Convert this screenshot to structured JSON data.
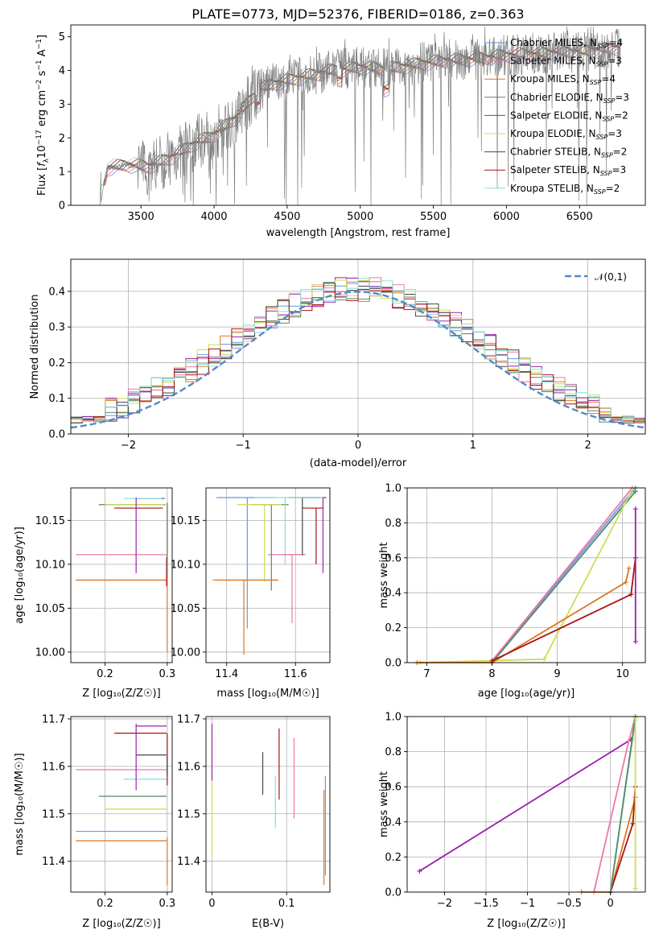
{
  "chart_data": [
    {
      "type": "line",
      "title": "PLATE=0773, MJD=52376, FIBERID=0186, z=0.363",
      "xlabel": "wavelength [Angstrom, rest frame]",
      "ylabel": "Flux [f_λ 10^{-17} erg cm^{-2} s^{-1} A^{-1}]",
      "xlim": [
        3020,
        6950
      ],
      "ylim": [
        0,
        5.35
      ],
      "xticks": [
        3500,
        4000,
        4500,
        5000,
        5500,
        6000,
        6500
      ],
      "yticks": [
        0,
        1,
        2,
        3,
        4,
        5
      ],
      "legend_position": "right",
      "data_series": {
        "name": "",
        "color": "#808080",
        "start": 3220,
        "end": 6780,
        "note_x": [
          3220,
          3270,
          3400,
          3550,
          3700,
          3850,
          4000,
          4150,
          4300,
          4400,
          4600,
          4800,
          5000,
          5200,
          5400,
          5600,
          5800,
          6000,
          6200,
          6400,
          6600,
          6780
        ],
        "y": [
          0.0,
          1.1,
          1.2,
          1.15,
          1.4,
          1.8,
          2.1,
          2.6,
          3.4,
          3.6,
          3.8,
          4.0,
          4.1,
          4.05,
          4.2,
          4.3,
          4.35,
          4.45,
          4.5,
          4.55,
          4.6,
          4.7
        ]
      },
      "series": [
        {
          "name": "Chabrier MILES, N_SSP=4",
          "color": "#6699dd"
        },
        {
          "name": "Salpeter MILES, N_SSP=3",
          "color": "#ee77aa"
        },
        {
          "name": "Kroupa MILES, N_SSP=4",
          "color": "#dd7722"
        },
        {
          "name": "Chabrier ELODIE, N_SSP=3",
          "color": "#558866"
        },
        {
          "name": "Salpeter ELODIE, N_SSP=2",
          "color": "#9922aa"
        },
        {
          "name": "Kroupa ELODIE, N_SSP=3",
          "color": "#ccdd55"
        },
        {
          "name": "Chabrier STELIB, N_SSP=2",
          "color": "#444444"
        },
        {
          "name": "Salpeter STELIB, N_SSP=3",
          "color": "#aa1111"
        },
        {
          "name": "Kroupa STELIB, N_SSP=2",
          "color": "#88dddd"
        }
      ]
    },
    {
      "type": "line",
      "title": "",
      "xlabel": "(data-model)/error",
      "ylabel": "Normed distribution",
      "xlim": [
        -2.5,
        2.5
      ],
      "ylim": [
        0,
        0.49
      ],
      "xticks": [
        -2,
        -1,
        0,
        1,
        2
      ],
      "yticks": [
        0.0,
        0.1,
        0.2,
        0.3,
        0.4
      ],
      "legend_position": "top-right",
      "reference_curve": {
        "name": "𝒩(0,1)",
        "color": "#5588cc"
      },
      "hist_bins": [
        -2.5,
        -2.4,
        -2.3,
        -2.2,
        -2.1,
        -2.0,
        -1.9,
        -1.8,
        -1.7,
        -1.6,
        -1.5,
        -1.4,
        -1.3,
        -1.2,
        -1.1,
        -1.0,
        -0.9,
        -0.8,
        -0.7,
        -0.6,
        -0.5,
        -0.4,
        -0.3,
        -0.2,
        -0.1,
        0.0,
        0.1,
        0.2,
        0.3,
        0.4,
        0.5,
        0.6,
        0.7,
        0.8,
        0.9,
        1.0,
        1.1,
        1.2,
        1.3,
        1.4,
        1.5,
        1.6,
        1.7,
        1.8,
        1.9,
        2.0,
        2.1,
        2.2,
        2.3,
        2.4,
        2.5
      ]
    },
    {
      "type": "scatter",
      "title": "",
      "xlabel": "Z [log10(Z/Z☉)]",
      "ylabel": "age  [log10(age/yr)]",
      "xlim": [
        0.145,
        0.308
      ],
      "ylim": [
        9.988,
        10.187
      ],
      "xticks": [
        0.2,
        0.3
      ],
      "yticks": [
        10.0,
        10.05,
        10.1,
        10.15
      ],
      "ytick_labels": [
        "10.00",
        "10.05",
        "10.10",
        "10.15"
      ]
    },
    {
      "type": "scatter",
      "title": "",
      "xlabel": "mass [log10(M/M☉)]",
      "ylabel": "",
      "xlim": [
        11.34,
        11.7
      ],
      "ylim": [
        9.988,
        10.187
      ],
      "xticks": [
        11.4,
        11.6
      ],
      "yticks": [
        10.0,
        10.05,
        10.1,
        10.15
      ],
      "ytick_labels": [
        "10.00",
        "10.05",
        "10.10",
        "10.15"
      ]
    },
    {
      "type": "line",
      "title": "",
      "xlabel": "age  [log10(age/yr)]",
      "ylabel": "mass weight",
      "xlim": [
        6.7,
        10.35
      ],
      "ylim": [
        0,
        1.0
      ],
      "xticks": [
        7,
        8,
        9,
        10
      ],
      "yticks": [
        0.0,
        0.2,
        0.4,
        0.6,
        0.8,
        1.0
      ]
    },
    {
      "type": "scatter",
      "title": "",
      "xlabel": "Z [log10(Z/Z☉)]",
      "ylabel": "mass [log10(M/M☉)]",
      "xlim": [
        0.145,
        0.308
      ],
      "ylim": [
        11.335,
        11.705
      ],
      "xticks": [
        0.2,
        0.3
      ],
      "yticks": [
        11.4,
        11.5,
        11.6,
        11.7
      ]
    },
    {
      "type": "scatter",
      "title": "",
      "xlabel": "E(B-V)",
      "ylabel": "",
      "xlim": [
        -0.008,
        0.158
      ],
      "ylim": [
        11.335,
        11.705
      ],
      "xticks": [
        0.0,
        0.1
      ],
      "yticks": [
        11.4,
        11.5,
        11.6,
        11.7
      ]
    },
    {
      "type": "line",
      "title": "",
      "xlabel": "Z [log10(Z/Z☉)]",
      "ylabel": "mass weight",
      "xlim": [
        -2.45,
        0.42
      ],
      "ylim": [
        0,
        1.0
      ],
      "xticks": [
        -2.0,
        -1.5,
        -1.0,
        -0.5,
        0.0
      ],
      "yticks": [
        0.0,
        0.2,
        0.4,
        0.6,
        0.8,
        1.0
      ]
    }
  ],
  "fits": [
    {
      "name": "Chabrier MILES",
      "color": "#6699dd",
      "age": 10.082,
      "Z": 0.153,
      "Zerr": [
        0.153,
        0.3
      ],
      "mass": 11.463,
      "ebv": 0.15,
      "ageErrLow": 10.0,
      "massErrX": [
        11.45,
        11.46
      ]
    },
    {
      "name": "Salpeter MILES",
      "color": "#ee77aa",
      "age": 10.111,
      "Z": 0.153,
      "mass": 11.593,
      "ebv": 0.11
    },
    {
      "name": "Kroupa MILES",
      "color": "#dd7722",
      "age": 10.082,
      "Z": 0.153,
      "mass": 11.443,
      "ebv": 0.15
    },
    {
      "name": "Chabrier ELODIE",
      "color": "#558866",
      "age": 10.168,
      "Z": 0.19,
      "mass": 11.537,
      "ebv": 0.07
    },
    {
      "name": "Salpeter ELODIE",
      "color": "#9922aa",
      "age": 10.175,
      "Z": 0.25,
      "mass": 11.685,
      "ebv": 0.0
    },
    {
      "name": "Kroupa ELODIE",
      "color": "#ccdd55",
      "age": 10.168,
      "Z": 0.2,
      "mass": 11.51,
      "ebv": 0.0
    },
    {
      "name": "Chabrier STELIB",
      "color": "#444444",
      "age": 10.175,
      "Z": 0.25,
      "mass": 11.624,
      "ebv": 0.07
    },
    {
      "name": "Salpeter STELIB",
      "color": "#aa1111",
      "age": 10.164,
      "Z": 0.215,
      "mass": 11.67,
      "ebv": 0.09
    },
    {
      "name": "Kroupa STELIB",
      "color": "#88dddd",
      "age": 10.175,
      "Z": 0.23,
      "mass": 11.573,
      "ebv": 0.085
    }
  ]
}
